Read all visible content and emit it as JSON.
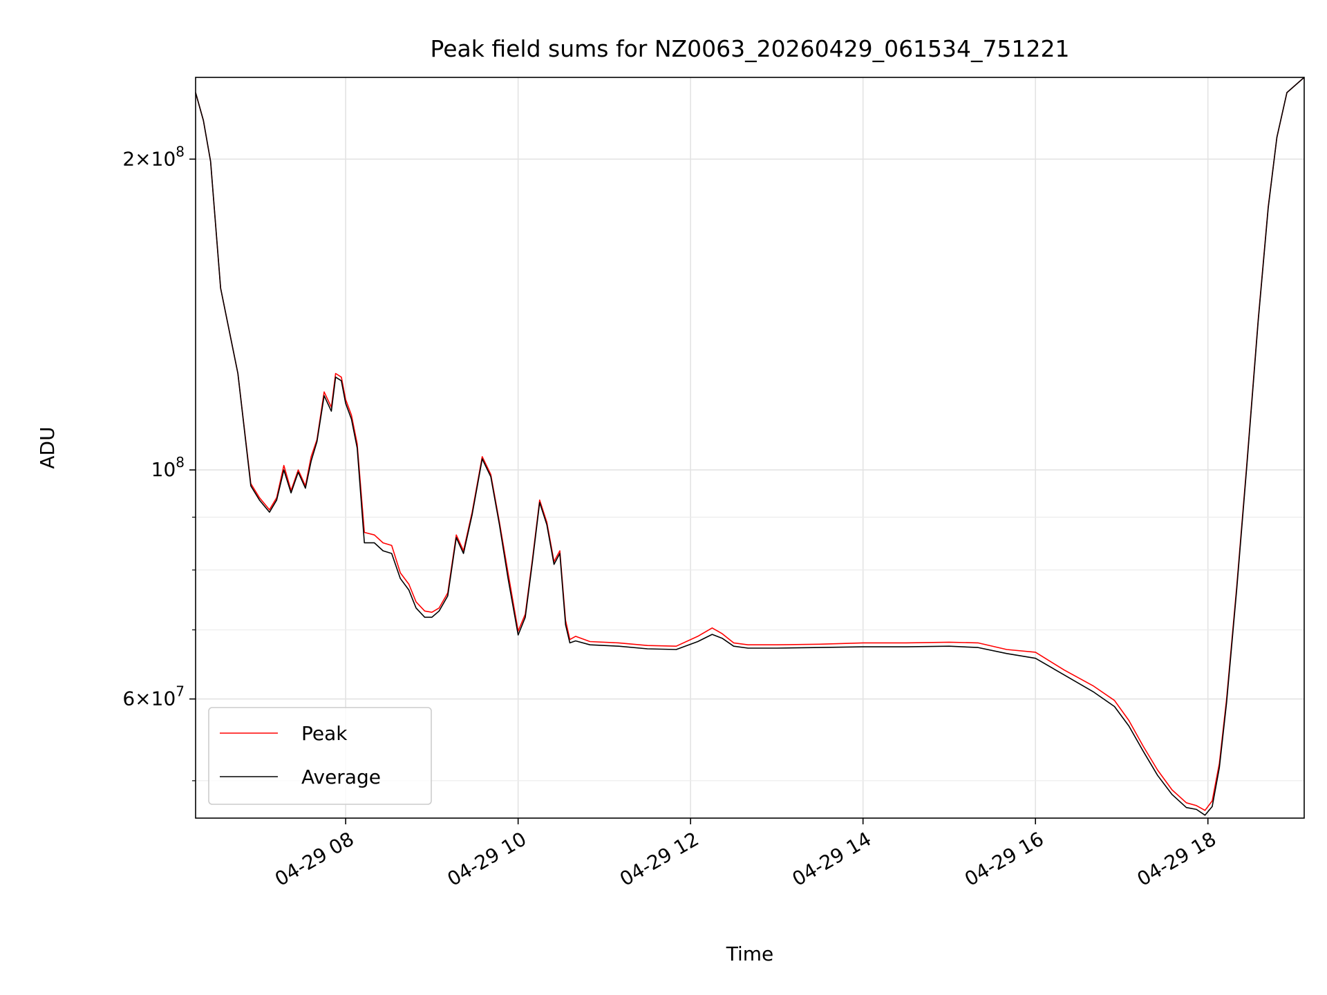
{
  "chart_data": {
    "type": "line",
    "title": "Peak field sums for NZ0063_20260429_061534_751221",
    "xlabel": "Time",
    "ylabel": "ADU",
    "x_scale": "time",
    "y_scale": "log",
    "xlim": [
      "2026-04-29 06:15:34",
      "2026-04-29 19:07:00"
    ],
    "ylim": [
      46000000,
      240000000
    ],
    "grid": true,
    "legend": {
      "position": "lower-left",
      "entries": [
        "Peak",
        "Average"
      ]
    },
    "x_ticks": [
      {
        "value": "2026-04-29 08:00",
        "label": "04-29 08"
      },
      {
        "value": "2026-04-29 10:00",
        "label": "04-29 10"
      },
      {
        "value": "2026-04-29 12:00",
        "label": "04-29 12"
      },
      {
        "value": "2026-04-29 14:00",
        "label": "04-29 14"
      },
      {
        "value": "2026-04-29 16:00",
        "label": "04-29 16"
      },
      {
        "value": "2026-04-29 18:00",
        "label": "04-29 18"
      }
    ],
    "y_ticks": [
      {
        "value": 60000000,
        "mantissa": "6",
        "exponent": "7"
      },
      {
        "value": 100000000,
        "mantissa": "",
        "exponent": "8"
      },
      {
        "value": 200000000,
        "mantissa": "2",
        "exponent": "8"
      }
    ],
    "y_minor_ticks": [
      50000000,
      70000000,
      80000000,
      90000000,
      300000000
    ],
    "series": [
      {
        "name": "Peak",
        "color": "#ff0000",
        "x": [
          "2026-04-29 06:15:34",
          "2026-04-29 06:21",
          "2026-04-29 06:26",
          "2026-04-29 06:33",
          "2026-04-29 06:45",
          "2026-04-29 06:54",
          "2026-04-29 07:00",
          "2026-04-29 07:07",
          "2026-04-29 07:12",
          "2026-04-29 07:17",
          "2026-04-29 07:22",
          "2026-04-29 07:27",
          "2026-04-29 07:32",
          "2026-04-29 07:36",
          "2026-04-29 07:40",
          "2026-04-29 07:45",
          "2026-04-29 07:50",
          "2026-04-29 07:53",
          "2026-04-29 07:57",
          "2026-04-29 08:00",
          "2026-04-29 08:04",
          "2026-04-29 08:08",
          "2026-04-29 08:13",
          "2026-04-29 08:20",
          "2026-04-29 08:26",
          "2026-04-29 08:32",
          "2026-04-29 08:38",
          "2026-04-29 08:44",
          "2026-04-29 08:49",
          "2026-04-29 08:55",
          "2026-04-29 09:00",
          "2026-04-29 09:05",
          "2026-04-29 09:11",
          "2026-04-29 09:17",
          "2026-04-29 09:22",
          "2026-04-29 09:28",
          "2026-04-29 09:35",
          "2026-04-29 09:41",
          "2026-04-29 09:47",
          "2026-04-29 09:53",
          "2026-04-29 10:00",
          "2026-04-29 10:05",
          "2026-04-29 10:10",
          "2026-04-29 10:15",
          "2026-04-29 10:20",
          "2026-04-29 10:25",
          "2026-04-29 10:29",
          "2026-04-29 10:33",
          "2026-04-29 10:36",
          "2026-04-29 10:40",
          "2026-04-29 10:50",
          "2026-04-29 11:10",
          "2026-04-29 11:30",
          "2026-04-29 11:50",
          "2026-04-29 12:05",
          "2026-04-29 12:15",
          "2026-04-29 12:22",
          "2026-04-29 12:30",
          "2026-04-29 12:40",
          "2026-04-29 13:00",
          "2026-04-29 13:30",
          "2026-04-29 14:00",
          "2026-04-29 14:30",
          "2026-04-29 15:00",
          "2026-04-29 15:20",
          "2026-04-29 15:40",
          "2026-04-29 16:00",
          "2026-04-29 16:20",
          "2026-04-29 16:40",
          "2026-04-29 16:55",
          "2026-04-29 17:05",
          "2026-04-29 17:15",
          "2026-04-29 17:25",
          "2026-04-29 17:35",
          "2026-04-29 17:45",
          "2026-04-29 17:52",
          "2026-04-29 17:58",
          "2026-04-29 18:03",
          "2026-04-29 18:08",
          "2026-04-29 18:13",
          "2026-04-29 18:20",
          "2026-04-29 18:27",
          "2026-04-29 18:35",
          "2026-04-29 18:42",
          "2026-04-29 18:48",
          "2026-04-29 18:55",
          "2026-04-29 19:07"
        ],
        "values": [
          232000000,
          218000000,
          199000000,
          150000000,
          124000000,
          97000000,
          94000000,
          91500000,
          94000000,
          101000000,
          95500000,
          100000000,
          96500000,
          103000000,
          107000000,
          119000000,
          115000000,
          124000000,
          123000000,
          117000000,
          113000000,
          106000000,
          87000000,
          86500000,
          85000000,
          84500000,
          79500000,
          77500000,
          74500000,
          73000000,
          72800000,
          73500000,
          76000000,
          86500000,
          83500000,
          91000000,
          103000000,
          99000000,
          89000000,
          79500000,
          69800000,
          72500000,
          82000000,
          93500000,
          89000000,
          81500000,
          83500000,
          71500000,
          68500000,
          69000000,
          68200000,
          68000000,
          67600000,
          67500000,
          69000000,
          70300000,
          69400000,
          68000000,
          67700000,
          67700000,
          67800000,
          68000000,
          68000000,
          68100000,
          68000000,
          67000000,
          66600000,
          64000000,
          61800000,
          59800000,
          57200000,
          54000000,
          51200000,
          49000000,
          47600000,
          47300000,
          46800000,
          47800000,
          52000000,
          60000000,
          77000000,
          101000000,
          140000000,
          180000000,
          210000000,
          232000000,
          240000000
        ]
      },
      {
        "name": "Average",
        "color": "#000000",
        "x": [
          "2026-04-29 06:15:34",
          "2026-04-29 06:21",
          "2026-04-29 06:26",
          "2026-04-29 06:33",
          "2026-04-29 06:45",
          "2026-04-29 06:54",
          "2026-04-29 07:00",
          "2026-04-29 07:07",
          "2026-04-29 07:12",
          "2026-04-29 07:17",
          "2026-04-29 07:22",
          "2026-04-29 07:27",
          "2026-04-29 07:32",
          "2026-04-29 07:36",
          "2026-04-29 07:40",
          "2026-04-29 07:45",
          "2026-04-29 07:50",
          "2026-04-29 07:53",
          "2026-04-29 07:57",
          "2026-04-29 08:00",
          "2026-04-29 08:04",
          "2026-04-29 08:08",
          "2026-04-29 08:13",
          "2026-04-29 08:20",
          "2026-04-29 08:26",
          "2026-04-29 08:32",
          "2026-04-29 08:38",
          "2026-04-29 08:44",
          "2026-04-29 08:49",
          "2026-04-29 08:55",
          "2026-04-29 09:00",
          "2026-04-29 09:05",
          "2026-04-29 09:11",
          "2026-04-29 09:17",
          "2026-04-29 09:22",
          "2026-04-29 09:28",
          "2026-04-29 09:35",
          "2026-04-29 09:41",
          "2026-04-29 09:47",
          "2026-04-29 09:53",
          "2026-04-29 10:00",
          "2026-04-29 10:05",
          "2026-04-29 10:10",
          "2026-04-29 10:15",
          "2026-04-29 10:20",
          "2026-04-29 10:25",
          "2026-04-29 10:29",
          "2026-04-29 10:33",
          "2026-04-29 10:36",
          "2026-04-29 10:40",
          "2026-04-29 10:50",
          "2026-04-29 11:10",
          "2026-04-29 11:30",
          "2026-04-29 11:50",
          "2026-04-29 12:05",
          "2026-04-29 12:15",
          "2026-04-29 12:22",
          "2026-04-29 12:30",
          "2026-04-29 12:40",
          "2026-04-29 13:00",
          "2026-04-29 13:30",
          "2026-04-29 14:00",
          "2026-04-29 14:30",
          "2026-04-29 15:00",
          "2026-04-29 15:20",
          "2026-04-29 15:40",
          "2026-04-29 16:00",
          "2026-04-29 16:20",
          "2026-04-29 16:40",
          "2026-04-29 16:55",
          "2026-04-29 17:05",
          "2026-04-29 17:15",
          "2026-04-29 17:25",
          "2026-04-29 17:35",
          "2026-04-29 17:45",
          "2026-04-29 17:52",
          "2026-04-29 17:58",
          "2026-04-29 18:03",
          "2026-04-29 18:08",
          "2026-04-29 18:13",
          "2026-04-29 18:20",
          "2026-04-29 18:27",
          "2026-04-29 18:35",
          "2026-04-29 18:42",
          "2026-04-29 18:48",
          "2026-04-29 18:55",
          "2026-04-29 19:07"
        ],
        "values": [
          232000000,
          218000000,
          199000000,
          150000000,
          124000000,
          96500000,
          93500000,
          91000000,
          93500000,
          100000000,
          95000000,
          99500000,
          96000000,
          102000000,
          106500000,
          118000000,
          114000000,
          123000000,
          122000000,
          116000000,
          112000000,
          105000000,
          85000000,
          85000000,
          83500000,
          83000000,
          78500000,
          76500000,
          73500000,
          72000000,
          72000000,
          73000000,
          75500000,
          86000000,
          83000000,
          90500000,
          102500000,
          98500000,
          88500000,
          78500000,
          69200000,
          72000000,
          81500000,
          93000000,
          88500000,
          81000000,
          83000000,
          70800000,
          68000000,
          68300000,
          67700000,
          67500000,
          67100000,
          67000000,
          68200000,
          69300000,
          68700000,
          67500000,
          67200000,
          67200000,
          67300000,
          67400000,
          67400000,
          67500000,
          67300000,
          66400000,
          65700000,
          63300000,
          61000000,
          59000000,
          56500000,
          53400000,
          50600000,
          48500000,
          47100000,
          46900000,
          46300000,
          47200000,
          51500000,
          59500000,
          76500000,
          100500000,
          139500000,
          179500000,
          210000000,
          232000000,
          240000000
        ]
      }
    ]
  }
}
